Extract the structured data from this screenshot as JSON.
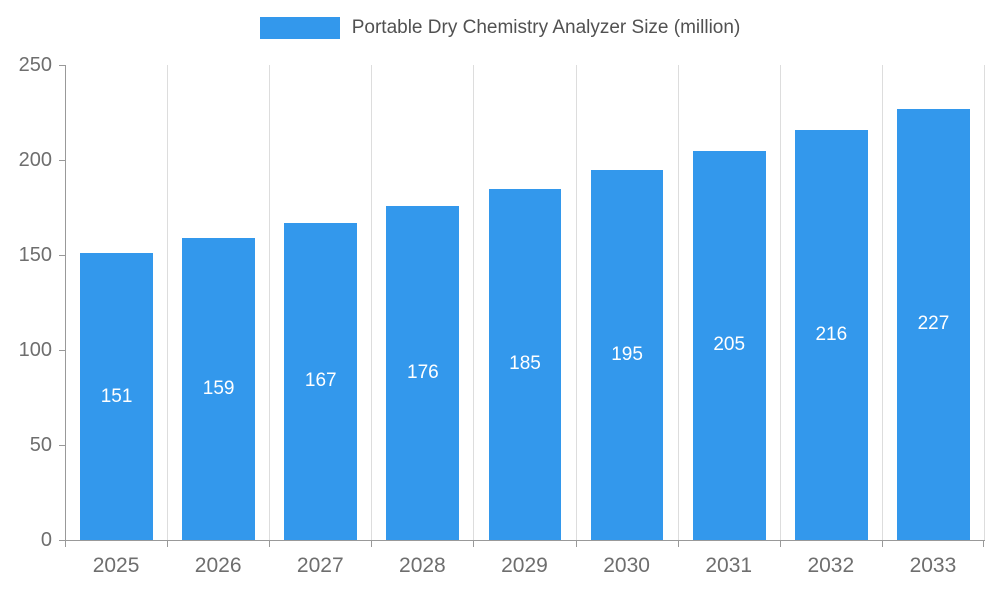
{
  "chart_data": {
    "type": "bar",
    "title": "Portable Dry Chemistry Analyzer Size (million)",
    "categories": [
      "2025",
      "2026",
      "2027",
      "2028",
      "2029",
      "2030",
      "2031",
      "2032",
      "2033"
    ],
    "values": [
      151,
      159,
      167,
      176,
      185,
      195,
      205,
      216,
      227
    ],
    "xlabel": "",
    "ylabel": "",
    "ylim": [
      0,
      250
    ],
    "yticks": [
      0,
      50,
      100,
      150,
      200,
      250
    ],
    "grid": "vertical-only",
    "legend_position": "top-center",
    "bar_color": "#3398EC",
    "value_label_color": "#ffffff",
    "axis_text_color": "#6e6e6e",
    "title_color": "#515151"
  }
}
